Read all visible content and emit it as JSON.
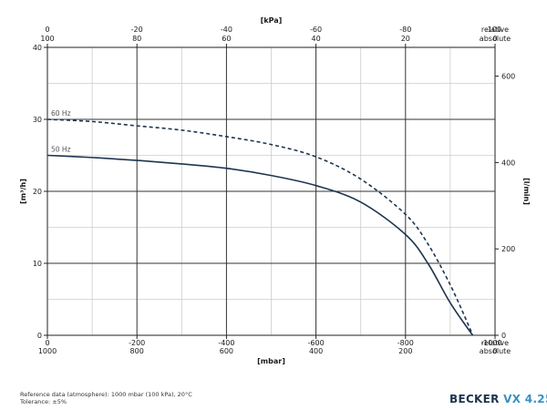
{
  "chart_data": {
    "type": "line",
    "y_left": {
      "label": "[m³/h]",
      "ticks": [
        "0",
        "10",
        "20",
        "30",
        "40"
      ],
      "range": [
        0,
        40
      ]
    },
    "y_right": {
      "label": "[l/min]",
      "ticks": [
        "0",
        "200",
        "400",
        "600"
      ],
      "range": [
        0,
        666.67
      ]
    },
    "x_bottom": {
      "label": "[mbar]",
      "relative": [
        "0",
        "-200",
        "-400",
        "-600",
        "-800",
        "relative"
      ],
      "absolute": [
        "1000",
        "800",
        "600",
        "400",
        "200",
        "absolute"
      ],
      "end_relative": "-1000",
      "end_absolute": "0",
      "range": [
        0,
        -1000
      ]
    },
    "x_top": {
      "label": "[kPa]",
      "relative": [
        "0",
        "-20",
        "-40",
        "-60",
        "-80",
        "relative"
      ],
      "absolute": [
        "100",
        "80",
        "60",
        "40",
        "20",
        "absolute"
      ],
      "end_relative": "-100",
      "end_absolute": "0"
    },
    "series": [
      {
        "name": "60 Hz",
        "style": "dashed",
        "points": [
          [
            0,
            30
          ],
          [
            -100,
            29.7
          ],
          [
            -200,
            29.1
          ],
          [
            -300,
            28.5
          ],
          [
            -400,
            27.6
          ],
          [
            -500,
            26.5
          ],
          [
            -600,
            24.8
          ],
          [
            -700,
            21.7
          ],
          [
            -800,
            16.8
          ],
          [
            -850,
            12.7
          ],
          [
            -900,
            7.0
          ],
          [
            -940,
            1.5
          ],
          [
            -950,
            0
          ]
        ]
      },
      {
        "name": "50 Hz",
        "style": "solid",
        "points": [
          [
            0,
            25
          ],
          [
            -100,
            24.7
          ],
          [
            -200,
            24.3
          ],
          [
            -300,
            23.8
          ],
          [
            -400,
            23.2
          ],
          [
            -500,
            22.2
          ],
          [
            -600,
            20.8
          ],
          [
            -700,
            18.5
          ],
          [
            -800,
            14.0
          ],
          [
            -850,
            10.0
          ],
          [
            -900,
            4.5
          ],
          [
            -950,
            0
          ]
        ]
      }
    ]
  },
  "footnote": {
    "reference": "Reference data (atmosphere): 1000 mbar (100 kPa), 20°C",
    "tolerance": "Tolerance: ±5%"
  },
  "brand": {
    "name": "BECKER",
    "model": "VX 4.25"
  },
  "colors": {
    "curve": "#1e3550",
    "grid_major": "#333333",
    "grid_minor": "#cccccc",
    "brand_accent": "#3d8fc4"
  }
}
